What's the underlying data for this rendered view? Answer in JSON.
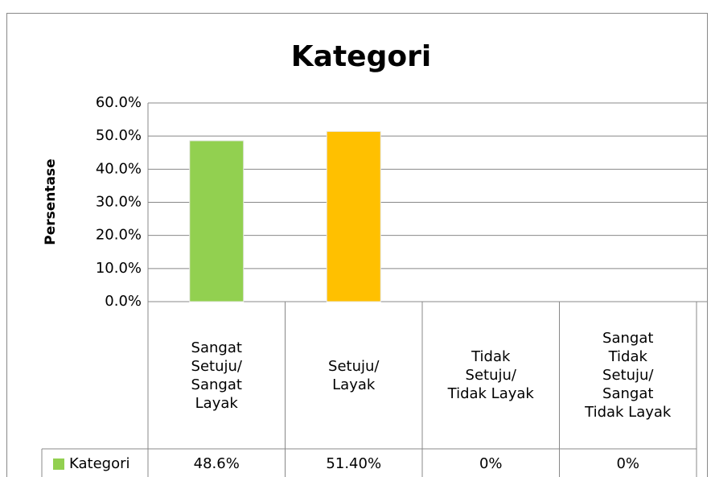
{
  "chart_data": {
    "type": "bar",
    "title": "Kategori",
    "y_label": "Persentase",
    "categories": [
      "Sangat\nSetuju/\nSangat\nLayak",
      "Setuju/\nLayak",
      "Tidak\nSetuju/\nTidak Layak",
      "Sangat\nTidak\nSetuju/\nSangat\nTidak Layak"
    ],
    "series": [
      {
        "name": "Kategori",
        "color": "#92d050",
        "colors": [
          "#92d050",
          "#ffc000",
          "#92d050",
          "#ffc000"
        ],
        "values": [
          48.6,
          51.4,
          0,
          0
        ],
        "value_labels": [
          "48.6%",
          "51.40%",
          "0%",
          "0%"
        ]
      }
    ],
    "ylim": [
      0,
      60
    ],
    "yticks": [
      {
        "value": 0,
        "label": "0.0%"
      },
      {
        "value": 10,
        "label": "10.0%"
      },
      {
        "value": 20,
        "label": "20.0%"
      },
      {
        "value": 30,
        "label": "30.0%"
      },
      {
        "value": 40,
        "label": "40.0%"
      },
      {
        "value": 50,
        "label": "50.0%"
      },
      {
        "value": 60,
        "label": "60.0%"
      }
    ],
    "grid": true,
    "data_table": true
  }
}
